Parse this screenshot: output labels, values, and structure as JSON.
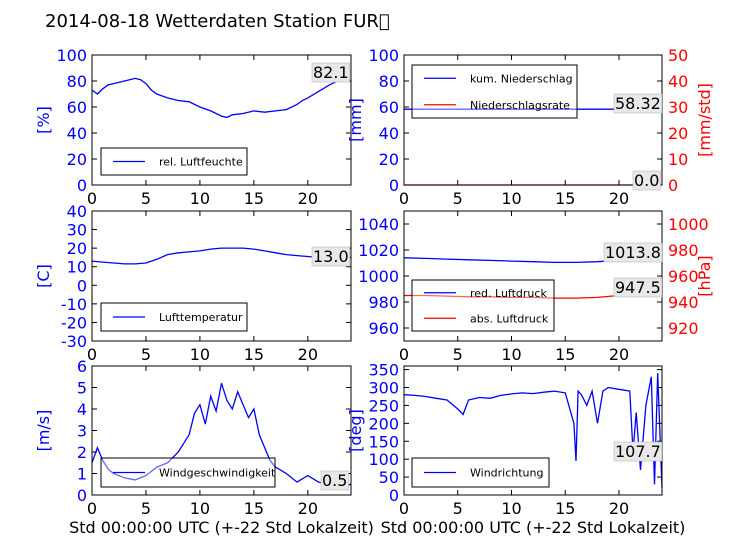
{
  "title": "2014-08-18 Wetterdaten Station FUR\u0000",
  "colors": {
    "primary": "#0000ff",
    "secondary": "#ff0000",
    "annot_bg": "#e8e8e8"
  },
  "chart_data": [
    {
      "id": "humidity",
      "type": "line",
      "ylabel": "[%]",
      "ylim": [
        0,
        100
      ],
      "yticks": [
        0,
        20,
        40,
        60,
        80,
        100
      ],
      "xlim": [
        0,
        24
      ],
      "xticks": [
        0,
        5,
        10,
        15,
        20
      ],
      "xlabel": "",
      "annotation": "82.1",
      "legend": {
        "position": "lower-left"
      },
      "series": [
        {
          "name": "rel. Luftfeuchte",
          "color": "#0000ff",
          "x": [
            0,
            0.5,
            1,
            1.5,
            2,
            3,
            4,
            4.5,
            5,
            5.5,
            6,
            7,
            8,
            9,
            10,
            11,
            12,
            12.5,
            13,
            14,
            15,
            16,
            17,
            18,
            19,
            19.5,
            20,
            21,
            22,
            23,
            23.5,
            24
          ],
          "y": [
            73,
            70,
            74,
            77,
            78,
            80,
            82,
            81,
            78,
            73,
            70,
            67,
            65,
            64,
            60,
            57,
            53,
            52,
            54,
            55,
            57,
            56,
            57,
            58,
            62,
            65,
            67,
            72,
            77,
            81,
            80,
            80
          ]
        }
      ]
    },
    {
      "id": "precip",
      "type": "line",
      "ylabel": "[mm]",
      "ylim": [
        0,
        100
      ],
      "yticks": [
        0,
        20,
        40,
        60,
        80,
        100
      ],
      "y2label": "[mm/std]",
      "y2lim": [
        0,
        50
      ],
      "y2ticks": [
        0,
        10,
        20,
        30,
        40,
        50
      ],
      "xlim": [
        0,
        24
      ],
      "xticks": [
        0,
        5,
        10,
        15,
        20
      ],
      "xlabel": "",
      "annotations": [
        "58.32",
        "0.0"
      ],
      "legend": {
        "position": "top-left"
      },
      "series": [
        {
          "name": "kum. Niederschlag",
          "axis": "left",
          "color": "#0000ff",
          "x": [
            0,
            24
          ],
          "y": [
            58.32,
            58.32
          ]
        },
        {
          "name": "Niederschlagsrate",
          "axis": "right",
          "color": "#ff0000",
          "x": [
            0,
            24
          ],
          "y": [
            0,
            0
          ]
        }
      ]
    },
    {
      "id": "temp",
      "type": "line",
      "ylabel": "[C]",
      "ylim": [
        -30,
        40
      ],
      "yticks": [
        -30,
        -20,
        -10,
        0,
        10,
        20,
        30,
        40
      ],
      "xlim": [
        0,
        24
      ],
      "xticks": [
        0,
        5,
        10,
        15,
        20
      ],
      "xlabel": "",
      "annotation": "13.0",
      "legend": {
        "position": "lower-left"
      },
      "series": [
        {
          "name": "Lufttemperatur",
          "color": "#0000ff",
          "x": [
            0,
            1,
            2,
            3,
            4,
            5,
            6,
            7,
            8,
            9,
            10,
            11,
            12,
            13,
            14,
            15,
            16,
            17,
            18,
            19,
            20,
            21,
            22,
            23,
            24
          ],
          "y": [
            13,
            12.5,
            12,
            11.5,
            11.5,
            12,
            14,
            16.5,
            17.5,
            18,
            18.5,
            19.5,
            20,
            20,
            20,
            19.5,
            18.5,
            17.5,
            16.5,
            16,
            15.5,
            15,
            15,
            15,
            15
          ]
        }
      ]
    },
    {
      "id": "pressure",
      "type": "line",
      "ylabel": "",
      "ylim": [
        950,
        1050
      ],
      "yticks": [
        960,
        980,
        1000,
        1020,
        1040
      ],
      "y2label": "[hPa]",
      "y2lim": [
        910,
        1010
      ],
      "y2ticks": [
        920,
        940,
        960,
        980,
        1000
      ],
      "xlim": [
        0,
        24
      ],
      "xticks": [
        0,
        5,
        10,
        15,
        20
      ],
      "xlabel": "",
      "annotations": [
        "1013.8",
        "947.5"
      ],
      "legend": {
        "position": "lower-left"
      },
      "series": [
        {
          "name": "red. Luftdruck",
          "axis": "left",
          "color": "#0000ff",
          "x": [
            0,
            2,
            4,
            6,
            8,
            10,
            12,
            14,
            16,
            18,
            20,
            22,
            24
          ],
          "y": [
            1014,
            1013.5,
            1013,
            1012.5,
            1012,
            1011.5,
            1011,
            1010.5,
            1010.5,
            1011,
            1012,
            1013.5,
            1013.8
          ]
        },
        {
          "name": "abs. Luftdruck",
          "axis": "right",
          "color": "#ff0000",
          "x": [
            0,
            2,
            4,
            6,
            8,
            10,
            12,
            14,
            16,
            18,
            20,
            22,
            24
          ],
          "y": [
            945,
            945,
            944.5,
            944,
            944,
            943.5,
            943.5,
            943,
            943,
            943.5,
            945,
            946.5,
            947.5
          ]
        }
      ]
    },
    {
      "id": "wind",
      "type": "line",
      "ylabel": "[m/s]",
      "ylim": [
        0,
        6
      ],
      "yticks": [
        0,
        1,
        2,
        3,
        4,
        5,
        6
      ],
      "xlim": [
        0,
        24
      ],
      "xticks": [
        0,
        5,
        10,
        15,
        20
      ],
      "xlabel": "Std 00:00:00 UTC (+-22 Std Lokalzeit)",
      "annotation": "0.5",
      "legend": {
        "position": "lower-left"
      },
      "series": [
        {
          "name": "Windgeschwindigkeit",
          "color": "#0000ff",
          "x": [
            0,
            0.5,
            1,
            1.5,
            2,
            3,
            4,
            5,
            6,
            7,
            8,
            9,
            9.5,
            10,
            10.5,
            11,
            11.5,
            12,
            12.5,
            13,
            13.5,
            14,
            14.5,
            15,
            15.5,
            16,
            16.5,
            17,
            18,
            19,
            20,
            21,
            22,
            23,
            24
          ],
          "y": [
            1.5,
            2.2,
            1.6,
            1.2,
            1.0,
            0.8,
            0.7,
            0.9,
            1.3,
            1.5,
            2.0,
            2.8,
            3.8,
            4.2,
            3.3,
            4.6,
            3.9,
            5.2,
            4.4,
            4.0,
            4.8,
            4.2,
            3.6,
            4.0,
            2.8,
            2.2,
            1.6,
            1.3,
            1.0,
            0.6,
            0.9,
            0.6,
            0.5,
            0.4,
            0.5
          ]
        }
      ]
    },
    {
      "id": "winddir",
      "type": "line",
      "ylabel": "[deg]",
      "ylim": [
        0,
        360
      ],
      "yticks": [
        0,
        50,
        100,
        150,
        200,
        250,
        300,
        350
      ],
      "xlim": [
        0,
        24
      ],
      "xticks": [
        0,
        5,
        10,
        15,
        20
      ],
      "xlabel": "Std 00:00:00 UTC (+-22 Std Lokalzeit)",
      "annotation": "107.7",
      "legend": {
        "position": "lower-left"
      },
      "series": [
        {
          "name": "Windrichtung",
          "color": "#0000ff",
          "x": [
            0,
            1,
            2,
            3,
            4,
            5,
            5.5,
            6,
            7,
            8,
            9,
            10,
            11,
            12,
            13,
            14,
            15,
            15.8,
            16,
            16.2,
            16.5,
            17,
            17.5,
            18,
            18.5,
            19,
            20,
            21,
            21.3,
            21.6,
            22,
            22.5,
            23,
            23.3,
            23.6,
            24
          ],
          "y": [
            280,
            278,
            275,
            270,
            265,
            240,
            225,
            265,
            272,
            270,
            278,
            282,
            285,
            283,
            287,
            290,
            285,
            200,
            95,
            290,
            280,
            250,
            290,
            200,
            290,
            300,
            295,
            290,
            120,
            230,
            70,
            250,
            330,
            30,
            340,
            20
          ]
        }
      ]
    }
  ]
}
